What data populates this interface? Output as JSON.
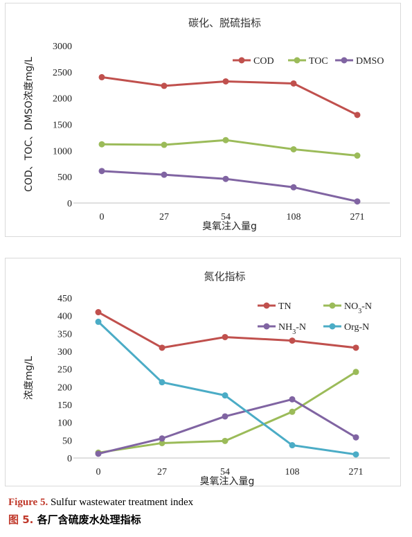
{
  "chart_data": [
    {
      "type": "line",
      "title": "碳化、脱硫指标",
      "xlabel": "臭氧注入量g",
      "ylabel": "COD、TOC、DMSO浓度mg/L",
      "categories": [
        "0",
        "27",
        "54",
        "108",
        "271"
      ],
      "ylim": [
        0,
        3000
      ],
      "yticks": [
        0,
        500,
        1000,
        1500,
        2000,
        2500,
        3000
      ],
      "legend_position": "top-right",
      "grid": false,
      "series": [
        {
          "name": "COD",
          "color": "#c0504d",
          "values": [
            2400,
            2235,
            2320,
            2280,
            1680
          ]
        },
        {
          "name": "TOC",
          "color": "#9bbb59",
          "values": [
            1120,
            1110,
            1200,
            1025,
            905
          ]
        },
        {
          "name": "DMSO",
          "color": "#8064a2",
          "values": [
            610,
            540,
            460,
            300,
            30
          ]
        }
      ]
    },
    {
      "type": "line",
      "title": "氮化指标",
      "xlabel": "臭氧注入量g",
      "ylabel": "浓度mg/L",
      "categories": [
        "0",
        "27",
        "54",
        "108",
        "271"
      ],
      "ylim": [
        0,
        450
      ],
      "yticks": [
        0,
        50,
        100,
        150,
        200,
        250,
        300,
        350,
        400,
        450
      ],
      "legend_position": "top-right",
      "grid": false,
      "series": [
        {
          "name": "TN",
          "color": "#c0504d",
          "values": [
            410,
            310,
            340,
            330,
            310
          ]
        },
        {
          "name": "NO3-N",
          "label_main": "NO",
          "label_sub": "3",
          "label_tail": "-N",
          "color": "#9bbb59",
          "values": [
            15,
            42,
            48,
            130,
            242
          ]
        },
        {
          "name": "NH3-N",
          "label_main": "NH",
          "label_sub": "3",
          "label_tail": "-N",
          "color": "#8064a2",
          "values": [
            12,
            55,
            117,
            165,
            58
          ]
        },
        {
          "name": "Org-N",
          "color": "#4bacc6",
          "values": [
            383,
            213,
            176,
            36,
            10
          ]
        }
      ]
    }
  ],
  "captions": {
    "en_label": "Figure 5.",
    "en_text": " Sulfur wastewater treatment index",
    "zh_label": "图 5.",
    "zh_text": "各厂含硫废水处理指标"
  }
}
